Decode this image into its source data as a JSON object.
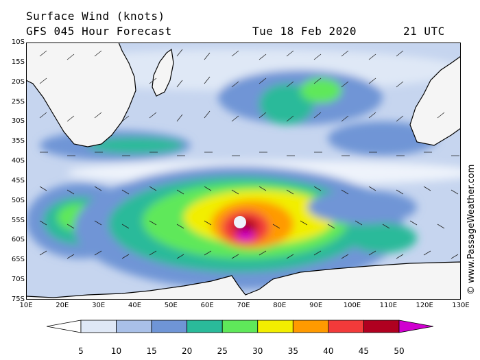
{
  "header": {
    "title": "Surface Wind (knots)",
    "forecast": "GFS 045 Hour Forecast",
    "date": "Tue 18 Feb 2020",
    "time": "21 UTC"
  },
  "credit": "© www.PassageWeather.com",
  "map": {
    "lat_labels": [
      "10S",
      "15S",
      "20S",
      "25S",
      "30S",
      "35S",
      "40S",
      "45S",
      "50S",
      "55S",
      "60S",
      "65S",
      "70S",
      "75S"
    ],
    "lon_labels": [
      "10E",
      "20E",
      "30E",
      "40E",
      "50E",
      "60E",
      "70E",
      "80E",
      "90E",
      "100E",
      "110E",
      "120E",
      "130E"
    ],
    "lat_range": [
      -10,
      -75
    ],
    "lon_range": [
      10,
      130
    ]
  },
  "legend": {
    "labels": [
      "5",
      "10",
      "15",
      "20",
      "25",
      "30",
      "35",
      "40",
      "45",
      "50"
    ],
    "colors": [
      "#ffffff",
      "#dfe8f6",
      "#a9c0e8",
      "#6f95d6",
      "#2aba9a",
      "#5fe85a",
      "#f2ee00",
      "#ff9a00",
      "#f23a3a",
      "#b00020",
      "#d000d0"
    ]
  },
  "colors": {
    "land": "#f5f5f5",
    "coast": "#000000"
  }
}
